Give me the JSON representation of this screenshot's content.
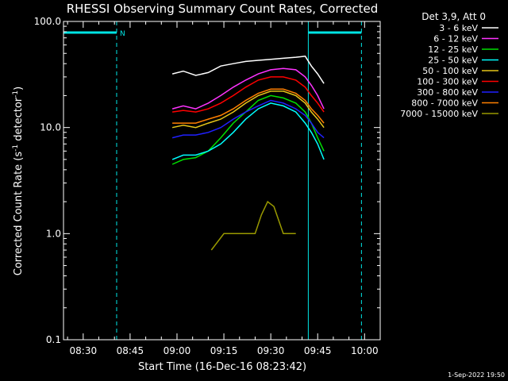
{
  "chart_data": {
    "type": "line",
    "title": "RHESSI Observing Summary Count Rates, Corrected",
    "xlabel": "Start Time (16-Dec-16 08:23:42)",
    "ylabel_prefix": "Corrected Count Rate (s",
    "ylabel_sup1": "-1",
    "ylabel_mid": " detector",
    "ylabel_sup2": "-1",
    "ylabel_suffix": ")",
    "y_scale": "log",
    "ylim": [
      0.1,
      100.0
    ],
    "y_ticks": [
      {
        "value": 100.0,
        "label": "100.0"
      },
      {
        "value": 10.0,
        "label": "10.0"
      },
      {
        "value": 1.0,
        "label": "1.0"
      },
      {
        "value": 0.1,
        "label": "0.1"
      }
    ],
    "xlim_minutes": [
      503.7,
      605.0
    ],
    "x_ticks": [
      {
        "value": 510,
        "label": "08:30"
      },
      {
        "value": 525,
        "label": "08:45"
      },
      {
        "value": 540,
        "label": "09:00"
      },
      {
        "value": 555,
        "label": "09:15"
      },
      {
        "value": 570,
        "label": "09:30"
      },
      {
        "value": 585,
        "label": "09:45"
      },
      {
        "value": 600,
        "label": "10:00"
      }
    ],
    "grid": false,
    "legend_placement": "right",
    "legend_header": "Det 3,9, Att 0",
    "night_label": "N",
    "timestamp": "1-Sep-2022 19:50",
    "colors": {
      "background": "#000000",
      "axes": "#ffffff",
      "night_marker": "#00e5e5"
    },
    "night_intervals": [
      {
        "start": 503.7,
        "end": 520.7
      },
      {
        "start": 582.0,
        "end": 599.0
      }
    ],
    "series": [
      {
        "name": "3 - 6 keV",
        "color": "#ffffff",
        "points": [
          [
            538.5,
            32
          ],
          [
            542,
            34
          ],
          [
            546,
            31
          ],
          [
            550,
            33
          ],
          [
            554,
            38
          ],
          [
            558,
            40
          ],
          [
            562,
            42
          ],
          [
            566,
            43
          ],
          [
            570,
            44
          ],
          [
            574,
            45
          ],
          [
            578,
            46
          ],
          [
            581,
            47
          ],
          [
            583,
            38
          ],
          [
            585,
            32
          ],
          [
            587,
            26
          ]
        ]
      },
      {
        "name": "6 - 12 keV",
        "color": "#ff33ff",
        "points": [
          [
            538.5,
            15
          ],
          [
            542,
            16
          ],
          [
            546,
            15
          ],
          [
            550,
            17
          ],
          [
            554,
            20
          ],
          [
            558,
            24
          ],
          [
            562,
            28
          ],
          [
            566,
            32
          ],
          [
            570,
            35
          ],
          [
            574,
            36
          ],
          [
            578,
            35
          ],
          [
            581,
            30
          ],
          [
            583,
            25
          ],
          [
            585,
            20
          ],
          [
            587,
            15
          ]
        ]
      },
      {
        "name": "12 - 25 keV",
        "color": "#00e000",
        "points": [
          [
            538.5,
            4.5
          ],
          [
            542,
            5
          ],
          [
            546,
            5.2
          ],
          [
            550,
            6
          ],
          [
            554,
            8
          ],
          [
            558,
            11
          ],
          [
            562,
            14
          ],
          [
            566,
            18
          ],
          [
            570,
            20
          ],
          [
            574,
            19
          ],
          [
            578,
            17
          ],
          [
            581,
            14
          ],
          [
            583,
            11
          ],
          [
            585,
            8
          ],
          [
            587,
            6
          ]
        ]
      },
      {
        "name": "25 - 50 keV",
        "color": "#00ffff",
        "points": [
          [
            538.5,
            5
          ],
          [
            542,
            5.5
          ],
          [
            546,
            5.5
          ],
          [
            550,
            6
          ],
          [
            554,
            7
          ],
          [
            558,
            9
          ],
          [
            562,
            12
          ],
          [
            566,
            15
          ],
          [
            570,
            17
          ],
          [
            574,
            16
          ],
          [
            578,
            14
          ],
          [
            581,
            11
          ],
          [
            583,
            9
          ],
          [
            585,
            7
          ],
          [
            587,
            5
          ]
        ]
      },
      {
        "name": "50 - 100 keV",
        "color": "#e6c619",
        "points": [
          [
            538.5,
            10
          ],
          [
            542,
            10.5
          ],
          [
            546,
            10
          ],
          [
            550,
            11
          ],
          [
            554,
            12
          ],
          [
            558,
            14
          ],
          [
            562,
            17
          ],
          [
            566,
            20
          ],
          [
            570,
            22
          ],
          [
            574,
            22
          ],
          [
            578,
            20
          ],
          [
            581,
            17
          ],
          [
            583,
            14
          ],
          [
            585,
            12
          ],
          [
            587,
            10
          ]
        ]
      },
      {
        "name": "100 - 300 keV",
        "color": "#ff0000",
        "points": [
          [
            538.5,
            14
          ],
          [
            542,
            14.5
          ],
          [
            546,
            14
          ],
          [
            550,
            15
          ],
          [
            554,
            17
          ],
          [
            558,
            20
          ],
          [
            562,
            24
          ],
          [
            566,
            28
          ],
          [
            570,
            30
          ],
          [
            574,
            30
          ],
          [
            578,
            28
          ],
          [
            581,
            24
          ],
          [
            583,
            20
          ],
          [
            585,
            17
          ],
          [
            587,
            14
          ]
        ]
      },
      {
        "name": "300 - 800 keV",
        "color": "#2020ff",
        "points": [
          [
            538.5,
            8
          ],
          [
            542,
            8.5
          ],
          [
            546,
            8.5
          ],
          [
            550,
            9
          ],
          [
            554,
            10
          ],
          [
            558,
            12
          ],
          [
            562,
            14
          ],
          [
            566,
            16
          ],
          [
            570,
            18
          ],
          [
            574,
            17
          ],
          [
            578,
            15
          ],
          [
            581,
            13
          ],
          [
            583,
            11
          ],
          [
            585,
            9
          ],
          [
            587,
            8
          ]
        ]
      },
      {
        "name": "800 - 7000 keV",
        "color": "#ff8000",
        "points": [
          [
            538.5,
            11
          ],
          [
            542,
            11
          ],
          [
            546,
            11
          ],
          [
            550,
            12
          ],
          [
            554,
            13
          ],
          [
            558,
            15
          ],
          [
            562,
            18
          ],
          [
            566,
            21
          ],
          [
            570,
            23
          ],
          [
            574,
            23
          ],
          [
            578,
            21
          ],
          [
            581,
            18
          ],
          [
            583,
            15
          ],
          [
            585,
            13
          ],
          [
            587,
            11
          ]
        ]
      },
      {
        "name": "7000 - 15000 keV",
        "color": "#999900",
        "points": [
          [
            551,
            0.7
          ],
          [
            555,
            1.0
          ],
          [
            560,
            1.0
          ],
          [
            565,
            1.0
          ],
          [
            567,
            1.5
          ],
          [
            569,
            2.0
          ],
          [
            571,
            1.8
          ],
          [
            574,
            1.0
          ],
          [
            578,
            1.0
          ]
        ]
      }
    ]
  }
}
